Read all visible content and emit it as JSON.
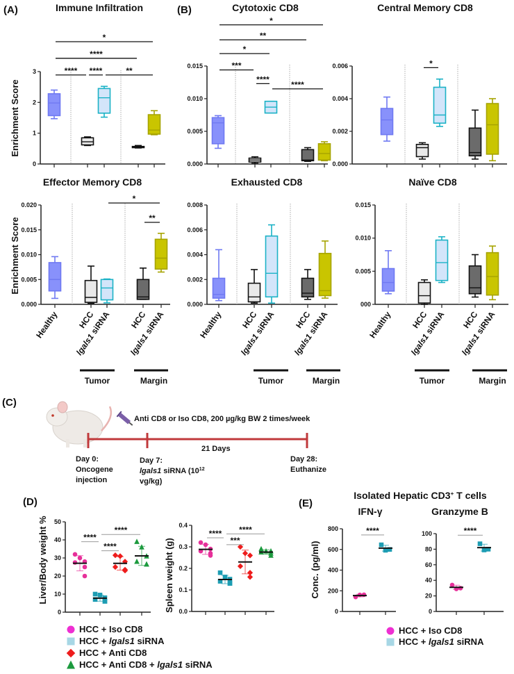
{
  "panel_labels": {
    "a": "(A)",
    "b": "(B)",
    "c": "(C)",
    "d": "(D)",
    "e": "(E)"
  },
  "y_axis_label": "Enrichment Score",
  "group_labels": {
    "healthy": "Healthy",
    "hcc": "HCC",
    "sirna_gene": "lgals1",
    "sirna_suffix": " siRNA",
    "tumor": "Tumor",
    "margin": "Margin"
  },
  "box_colors": [
    {
      "fill": "#8891fb",
      "stroke": "#6f79f2"
    },
    {
      "fill": "#e9e9e9",
      "stroke": "#111111"
    },
    {
      "fill": "#d3e5fa",
      "stroke": "#1bb2c6"
    },
    {
      "fill": "#6b6b6b",
      "stroke": "#111111"
    },
    {
      "fill": "#c9c500",
      "stroke": "#a6a300"
    }
  ],
  "chart_data": [
    {
      "id": "immune",
      "type": "box",
      "title": "Immune Infiltration",
      "ylabel": "Enrichment Score",
      "ylim": [
        0,
        3
      ],
      "yticks": [
        "0",
        "1",
        "2",
        "3"
      ],
      "ytick_values": [
        0,
        1,
        2,
        3
      ],
      "groups": [
        "Healthy",
        "HCC (Tumor)",
        "lgals1 siRNA (Tumor)",
        "HCC (Margin)",
        "lgals1 siRNA (Margin)"
      ],
      "boxes": [
        [
          1.47,
          1.57,
          1.98,
          2.28,
          2.4
        ],
        [
          0.6,
          0.62,
          0.72,
          0.85,
          0.88
        ],
        [
          1.52,
          1.65,
          2.15,
          2.45,
          2.52
        ],
        [
          0.52,
          0.53,
          0.55,
          0.57,
          0.6
        ],
        [
          0.95,
          0.97,
          1.1,
          1.6,
          1.73
        ]
      ],
      "sig": [
        {
          "from": 0,
          "to": 4,
          "y": 3.97,
          "label": "*"
        },
        {
          "from": 0,
          "to": 3,
          "y": 3.43,
          "label": "****"
        },
        {
          "from": 0,
          "to": 1,
          "y": 2.89,
          "label": "****"
        },
        {
          "from": 1,
          "to": 2,
          "y": 2.89,
          "label": "****"
        },
        {
          "from": 2,
          "to": 4,
          "y": 2.89,
          "label": "**"
        }
      ],
      "show_xlabels": false
    },
    {
      "id": "cytotoxic",
      "type": "box",
      "title": "Cytotoxic CD8",
      "ylim": [
        0,
        0.015
      ],
      "yticks": [
        "0.000",
        "0.005",
        "0.010",
        "0.015"
      ],
      "ytick_values": [
        0,
        0.005,
        0.01,
        0.015
      ],
      "groups": [
        "Healthy",
        "HCC (Tumor)",
        "lgals1 siRNA (Tumor)",
        "HCC (Margin)",
        "lgals1 siRNA (Margin)"
      ],
      "boxes": [
        [
          0.0024,
          0.0031,
          0.0063,
          0.0071,
          0.0074
        ],
        [
          0.0001,
          0.0003,
          0.0006,
          0.0009,
          0.0011
        ],
        [
          0.0078,
          0.0078,
          0.0087,
          0.0096,
          0.0096
        ],
        [
          0.0004,
          0.0005,
          0.0006,
          0.0022,
          0.0025
        ],
        [
          0.0005,
          0.0006,
          0.0016,
          0.0031,
          0.0034
        ]
      ],
      "sig": [
        {
          "from": 0,
          "to": 4,
          "y": 0.0213,
          "label": "*"
        },
        {
          "from": 0,
          "to": 3,
          "y": 0.019,
          "label": "**"
        },
        {
          "from": 0,
          "to": 2,
          "y": 0.0169,
          "label": "*"
        },
        {
          "from": 0,
          "to": 1,
          "y": 0.0144,
          "label": "***"
        },
        {
          "from": 1,
          "to": 2,
          "y": 0.0123,
          "label": "****"
        },
        {
          "from": 2,
          "to": 4,
          "y": 0.0115,
          "label": "****"
        }
      ],
      "show_xlabels": false
    },
    {
      "id": "central",
      "type": "box",
      "title": "Central Memory CD8",
      "ylim": [
        0,
        0.006
      ],
      "yticks": [
        "0.000",
        "0.002",
        "0.004",
        "0.006"
      ],
      "ytick_values": [
        0,
        0.002,
        0.004,
        0.006
      ],
      "groups": [
        "Healthy",
        "HCC (Tumor)",
        "lgals1 siRNA (Tumor)",
        "HCC (Margin)",
        "lgals1 siRNA (Margin)"
      ],
      "boxes": [
        [
          0.0014,
          0.0018,
          0.0027,
          0.0034,
          0.0041
        ],
        [
          0.0003,
          0.00045,
          0.001,
          0.0012,
          0.0013
        ],
        [
          0.0023,
          0.0025,
          0.003,
          0.0047,
          0.0052
        ],
        [
          0.0003,
          0.0005,
          0.0007,
          0.0022,
          0.0033
        ],
        [
          0.0002,
          0.0006,
          0.0024,
          0.0037,
          0.004
        ]
      ],
      "sig": [
        {
          "from": 1,
          "to": 2,
          "y": 0.0059,
          "label": "*"
        }
      ],
      "show_xlabels": false
    },
    {
      "id": "effector",
      "type": "box",
      "title": "Effector Memory CD8",
      "ylabel": "Enrichment Score",
      "ylim": [
        0,
        0.02
      ],
      "yticks": [
        "0.000",
        "0.005",
        "0.010",
        "0.015",
        "0.020"
      ],
      "ytick_values": [
        0,
        0.005,
        0.01,
        0.015,
        0.02
      ],
      "groups": [
        "Healthy",
        "HCC (Tumor)",
        "lgals1 siRNA (Tumor)",
        "HCC (Margin)",
        "lgals1 siRNA (Margin)"
      ],
      "boxes": [
        [
          0.0012,
          0.0027,
          0.005,
          0.0084,
          0.0096
        ],
        [
          0.0002,
          0.0004,
          0.0014,
          0.0048,
          0.0077
        ],
        [
          0.0003,
          0.0009,
          0.0033,
          0.005,
          0.0051
        ],
        [
          0.001,
          0.001,
          0.0015,
          0.005,
          0.0073
        ],
        [
          0.0065,
          0.0071,
          0.0093,
          0.0131,
          0.0143
        ]
      ],
      "sig": [
        {
          "from": 2,
          "to": 4,
          "y": 0.0204,
          "label": "*"
        },
        {
          "from": 3,
          "to": 4,
          "y": 0.0165,
          "label": "**"
        }
      ],
      "show_xlabels": true
    },
    {
      "id": "exhausted",
      "type": "box",
      "title": "Exhausted CD8",
      "ylim": [
        0,
        0.008
      ],
      "yticks": [
        "0.000",
        "0.002",
        "0.004",
        "0.006",
        "0.008"
      ],
      "ytick_values": [
        0,
        0.002,
        0.004,
        0.006,
        0.008
      ],
      "groups": [
        "Healthy",
        "HCC (Tumor)",
        "lgals1 siRNA (Tumor)",
        "HCC (Margin)",
        "lgals1 siRNA (Margin)"
      ],
      "boxes": [
        [
          0.0003,
          0.0005,
          0.0008,
          0.0021,
          0.0044
        ],
        [
          0.0001,
          0.0002,
          0.0006,
          0.0017,
          0.0028
        ],
        [
          0.0001,
          0.0006,
          0.0025,
          0.0055,
          0.0064
        ],
        [
          0.0004,
          0.0006,
          0.0009,
          0.0021,
          0.0028
        ],
        [
          0.0005,
          0.0007,
          0.0011,
          0.0041,
          0.0051
        ]
      ],
      "sig": [],
      "show_xlabels": true
    },
    {
      "id": "naive",
      "type": "box",
      "title": "Naïve CD8",
      "ylim": [
        0,
        0.015
      ],
      "yticks": [
        "000",
        "0.005",
        "0.010",
        "0.015"
      ],
      "ytick_values": [
        0,
        0.005,
        0.01,
        0.015
      ],
      "groups": [
        "Healthy",
        "HCC (Tumor)",
        "lgals1 siRNA (Tumor)",
        "HCC (Margin)",
        "lgals1 siRNA (Margin)"
      ],
      "boxes": [
        [
          0.0016,
          0.002,
          0.0033,
          0.0054,
          0.0081
        ],
        [
          0.0,
          0.0002,
          0.0013,
          0.0033,
          0.0037
        ],
        [
          0.0033,
          0.0036,
          0.0063,
          0.0097,
          0.0102
        ],
        [
          0.0011,
          0.0016,
          0.0025,
          0.0058,
          0.0075
        ],
        [
          0.0007,
          0.0014,
          0.0042,
          0.0078,
          0.0088
        ]
      ],
      "sig": [],
      "show_xlabels": true
    },
    {
      "id": "liver",
      "type": "scatter",
      "ylabel": "Liver/Body weight %",
      "ylim": [
        0,
        50
      ],
      "yticks": [
        "0",
        "10",
        "20",
        "30",
        "40",
        "50"
      ],
      "ytick_values": [
        0,
        10,
        20,
        30,
        40,
        50
      ],
      "groups": [
        "HCC + Iso CD8",
        "HCC + lgals1 siRNA",
        "HCC + Anti CD8",
        "HCC + Anti CD8 + lgals1 siRNA"
      ],
      "points": [
        [
          32,
          30,
          28,
          27.5,
          25,
          20
        ],
        [
          10,
          9.5,
          8,
          7,
          6,
          6
        ],
        [
          31.5,
          31,
          28,
          25,
          23.5,
          23
        ],
        [
          39,
          36,
          31,
          28,
          26.5,
          26.5
        ]
      ],
      "sig": [
        {
          "from": 0,
          "to": 1,
          "y": 39,
          "label": "****"
        },
        {
          "from": 1,
          "to": 2,
          "y": 34,
          "label": "****"
        },
        {
          "from": 1,
          "to": 3,
          "y": 43,
          "label": "****"
        }
      ]
    },
    {
      "id": "spleen",
      "type": "scatter",
      "ylabel": "Spleen weight (g)",
      "ylim": [
        0,
        0.4
      ],
      "yticks": [
        "0.0",
        "0.1",
        "0.2",
        "0.3",
        "0.4"
      ],
      "ytick_values": [
        0,
        0.1,
        0.2,
        0.3,
        0.4
      ],
      "groups": [
        "HCC + Iso CD8",
        "HCC + lgals1 siRNA",
        "HCC + Anti CD8",
        "HCC + Anti CD8 + lgals1 siRNA"
      ],
      "points": [
        [
          0.32,
          0.31,
          0.29,
          0.28,
          0.27,
          0.26
        ],
        [
          0.18,
          0.16,
          0.15,
          0.14,
          0.13,
          0.13
        ],
        [
          0.3,
          0.27,
          0.26,
          0.21,
          0.18,
          0.16
        ],
        [
          0.29,
          0.28,
          0.28,
          0.275,
          0.27,
          0.26
        ]
      ],
      "sig": [
        {
          "from": 0,
          "to": 1,
          "y": 0.342,
          "label": "****"
        },
        {
          "from": 1,
          "to": 2,
          "y": 0.31,
          "label": "***"
        },
        {
          "from": 1,
          "to": 3,
          "y": 0.36,
          "label": "****"
        }
      ]
    },
    {
      "id": "ifng",
      "type": "scatter",
      "title": "IFN-γ",
      "ylabel": "Conc. (pg/ml)",
      "ylim": [
        0,
        800
      ],
      "yticks": [
        "0",
        "200",
        "400",
        "600",
        "800"
      ],
      "ytick_values": [
        0,
        200,
        400,
        600,
        800
      ],
      "groups": [
        "HCC + Iso CD8",
        "HCC + lgals1 siRNA"
      ],
      "points": [
        [
          140,
          160,
          162
        ],
        [
          645,
          592,
          600
        ]
      ],
      "sig": [
        {
          "from": 0,
          "to": 1,
          "y": 740,
          "label": "****"
        }
      ]
    },
    {
      "id": "gzmb",
      "type": "scatter",
      "title": "Granzyme B",
      "ylim": [
        0,
        100
      ],
      "yticks": [
        "0",
        "20",
        "40",
        "60",
        "80",
        "100"
      ],
      "ytick_values": [
        0,
        20,
        40,
        60,
        80,
        100
      ],
      "groups": [
        "HCC + Iso CD8",
        "HCC + lgals1 siRNA"
      ],
      "points": [
        [
          34,
          29,
          30
        ],
        [
          87,
          79,
          80
        ]
      ],
      "sig": [
        {
          "from": 0,
          "to": 1,
          "y": 98,
          "label": "****"
        }
      ]
    }
  ],
  "scatter_styles": [
    {
      "marker": "circle",
      "color": "#e7309a",
      "legend_color": "#ee2fd2"
    },
    {
      "marker": "square",
      "color": "#1d9db3",
      "legend_color": "#a7d7e5"
    },
    {
      "marker": "diamond",
      "color": "#ee1c1c",
      "legend_color": "#ee1c1c"
    },
    {
      "marker": "triangle",
      "color": "#1c9a3e",
      "legend_color": "#1c9a3e"
    }
  ],
  "panel_e_title": {
    "main": "Isolated Hepatic CD3",
    "sup": "+",
    "rest": " T cells"
  },
  "legend_d": [
    {
      "pre": "HCC + Iso CD8",
      "gene": "",
      "post": ""
    },
    {
      "pre": "HCC + ",
      "gene": "lgals1",
      "post": " siRNA"
    },
    {
      "pre": "HCC + Anti CD8",
      "gene": "",
      "post": ""
    },
    {
      "pre": "HCC + Anti CD8 + ",
      "gene": "lgals1",
      "post": " siRNA"
    }
  ],
  "legend_e": [
    {
      "pre": "HCC + Iso CD8",
      "gene": "",
      "post": ""
    },
    {
      "pre": "HCC + ",
      "gene": "lgals1",
      "post": " siRNA"
    }
  ],
  "timeline": {
    "treatment": "Anti CD8 or Iso CD8, 200 µg/kg BW 2 times/week",
    "duration": "21 Days",
    "day0": [
      "Day 0:",
      "Oncogene",
      "injection"
    ],
    "day7_title": "Day 7:",
    "day7_gene": "lgals1",
    "day7_rest": " siRNA (10",
    "day7_exp": "12",
    "day7_unit": "vg/kg)",
    "day28": [
      "Day 28:",
      "Euthanize"
    ],
    "line_color": "#c0393b"
  }
}
